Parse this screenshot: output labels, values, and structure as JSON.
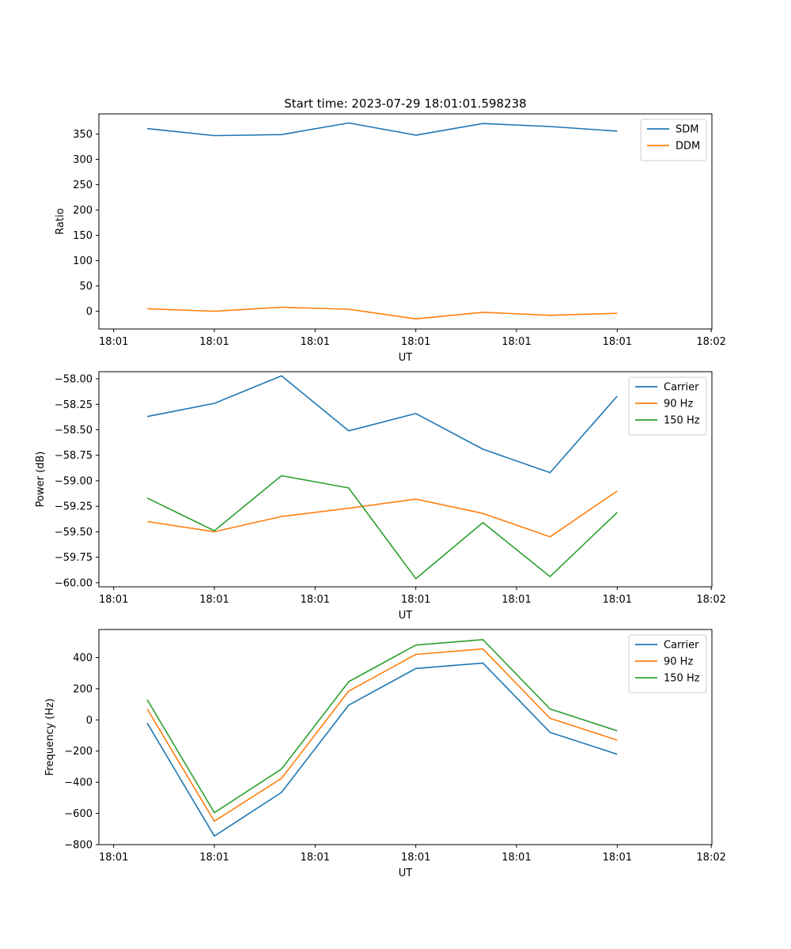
{
  "chart_data": [
    {
      "type": "line",
      "title": "Start time: 2023-07-29 18:01:01.598238",
      "xlabel": "UT",
      "ylabel": "Ratio",
      "x": [
        1,
        2,
        3,
        4,
        5,
        6,
        7,
        8
      ],
      "xlim": [
        0.28,
        9.41
      ],
      "xticks": [
        0.5,
        2,
        3.5,
        5,
        6.5,
        8,
        9.4
      ],
      "xtick_labels": [
        "18:01",
        "18:01",
        "18:01",
        "18:01",
        "18:01",
        "18:01",
        "18:02"
      ],
      "ylim": [
        -35,
        390
      ],
      "yticks": [
        0,
        50,
        100,
        150,
        200,
        250,
        300,
        350
      ],
      "ytick_labels": [
        "0",
        "50",
        "100",
        "150",
        "200",
        "250",
        "300",
        "350"
      ],
      "legend": "top-right",
      "series": [
        {
          "name": "SDM",
          "color": "#1f77b4",
          "values": [
            361,
            347,
            349,
            372,
            348,
            371,
            365,
            356
          ]
        },
        {
          "name": "DDM",
          "color": "#ff7f0e",
          "values": [
            5,
            0,
            8,
            4,
            -15,
            -2,
            -8,
            -4
          ]
        }
      ]
    },
    {
      "type": "line",
      "title": "",
      "xlabel": "UT",
      "ylabel": "Power (dB)",
      "x": [
        1,
        2,
        3,
        4,
        5,
        6,
        7,
        8
      ],
      "xlim": [
        0.28,
        9.41
      ],
      "xticks": [
        0.5,
        2,
        3.5,
        5,
        6.5,
        8,
        9.4
      ],
      "xtick_labels": [
        "18:01",
        "18:01",
        "18:01",
        "18:01",
        "18:01",
        "18:01",
        "18:02"
      ],
      "ylim": [
        -60.04,
        -57.93
      ],
      "yticks": [
        -60.0,
        -59.75,
        -59.5,
        -59.25,
        -59.0,
        -58.75,
        -58.5,
        -58.25,
        -58.0
      ],
      "ytick_labels": [
        "−60.00",
        "−59.75",
        "−59.50",
        "−59.25",
        "−59.00",
        "−58.75",
        "−58.50",
        "−58.25",
        "−58.00"
      ],
      "legend": "top-right",
      "series": [
        {
          "name": "Carrier",
          "color": "#1f77b4",
          "values": [
            -58.37,
            -58.24,
            -57.97,
            -58.51,
            -58.34,
            -58.69,
            -58.92,
            -58.17
          ]
        },
        {
          "name": "90 Hz",
          "color": "#ff7f0e",
          "values": [
            -59.4,
            -59.5,
            -59.35,
            -59.27,
            -59.18,
            -59.32,
            -59.55,
            -59.1
          ]
        },
        {
          "name": "150 Hz",
          "color": "#2ca02c",
          "values": [
            -59.17,
            -59.49,
            -58.95,
            -59.07,
            -59.96,
            -59.41,
            -59.94,
            -59.31
          ]
        }
      ]
    },
    {
      "type": "line",
      "title": "",
      "xlabel": "UT",
      "ylabel": "Frequency (Hz)",
      "x": [
        1,
        2,
        3,
        4,
        5,
        6,
        7,
        8
      ],
      "xlim": [
        0.28,
        9.41
      ],
      "xticks": [
        0.5,
        2,
        3.5,
        5,
        6.5,
        8,
        9.4
      ],
      "xtick_labels": [
        "18:01",
        "18:01",
        "18:01",
        "18:01",
        "18:01",
        "18:01",
        "18:02"
      ],
      "ylim": [
        -800,
        580
      ],
      "yticks": [
        -800,
        -600,
        -400,
        -200,
        0,
        200,
        400
      ],
      "ytick_labels": [
        "−800",
        "−600",
        "−400",
        "−200",
        "0",
        "200",
        "400"
      ],
      "legend": "top-right",
      "series": [
        {
          "name": "Carrier",
          "color": "#1f77b4",
          "values": [
            -20,
            -745,
            -465,
            95,
            330,
            365,
            -80,
            -220
          ]
        },
        {
          "name": "90 Hz",
          "color": "#ff7f0e",
          "values": [
            70,
            -650,
            -375,
            185,
            420,
            455,
            10,
            -130
          ]
        },
        {
          "name": "150 Hz",
          "color": "#2ca02c",
          "values": [
            130,
            -595,
            -315,
            245,
            480,
            515,
            70,
            -70
          ]
        }
      ]
    }
  ]
}
